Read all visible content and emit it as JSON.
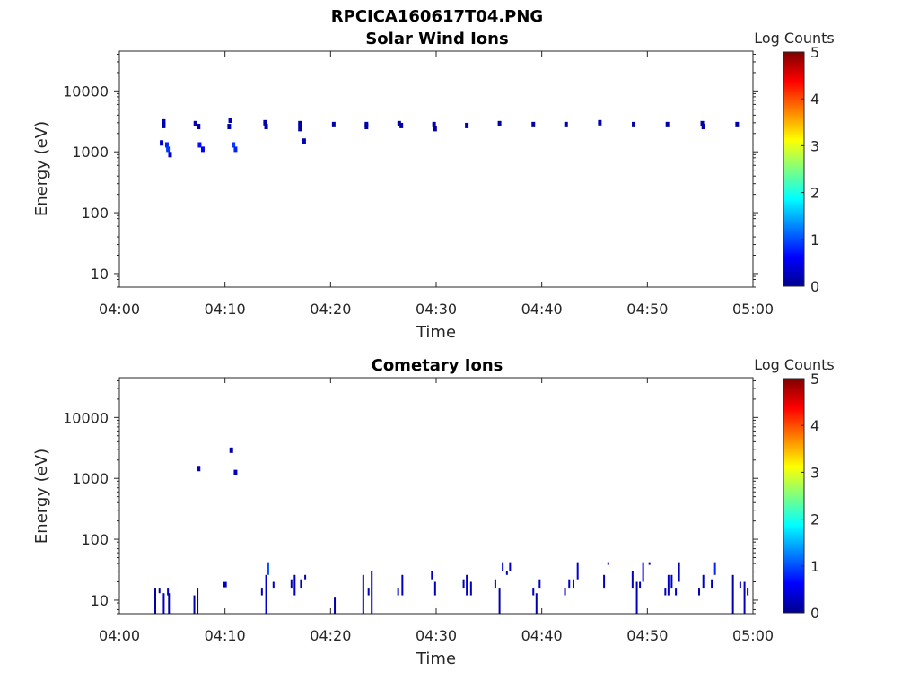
{
  "figure_title": "RPCICA160617T04.PNG",
  "chart_data": [
    {
      "type": "heatmap",
      "title": "Solar Wind Ions",
      "xlabel": "Time",
      "ylabel": "Energy (eV)",
      "y_scale": "log",
      "ylim": [
        6,
        45000
      ],
      "x_range": [
        "04:00",
        "05:00"
      ],
      "x_ticks": [
        "04:00",
        "04:10",
        "04:20",
        "04:30",
        "04:40",
        "04:50",
        "05:00"
      ],
      "y_ticks": [
        "10",
        "100",
        "1000",
        "10000"
      ],
      "y_tick_values": [
        10,
        100,
        1000,
        10000
      ],
      "colorbar": {
        "label": "Log Counts",
        "min": 0,
        "max": 5,
        "ticks": [
          "0",
          "1",
          "2",
          "3",
          "4",
          "5"
        ],
        "colormap": "jet"
      },
      "grid": false,
      "points": [
        {
          "t": 4.2,
          "e": 3100,
          "c": 0.3
        },
        {
          "t": 4.2,
          "e": 2700,
          "c": 0.2
        },
        {
          "t": 4.0,
          "e": 1400,
          "c": 0.4
        },
        {
          "t": 4.5,
          "e": 1300,
          "c": 0.8
        },
        {
          "t": 4.6,
          "e": 1100,
          "c": 0.9
        },
        {
          "t": 4.8,
          "e": 900,
          "c": 0.4
        },
        {
          "t": 7.2,
          "e": 2900,
          "c": 0.3
        },
        {
          "t": 7.5,
          "e": 2600,
          "c": 0.2
        },
        {
          "t": 7.6,
          "e": 1300,
          "c": 0.7
        },
        {
          "t": 7.9,
          "e": 1100,
          "c": 0.6
        },
        {
          "t": 10.5,
          "e": 3300,
          "c": 0.3
        },
        {
          "t": 10.4,
          "e": 2600,
          "c": 0.2
        },
        {
          "t": 10.8,
          "e": 1300,
          "c": 0.9
        },
        {
          "t": 11.0,
          "e": 1100,
          "c": 0.8
        },
        {
          "t": 13.8,
          "e": 3000,
          "c": 0.2
        },
        {
          "t": 13.9,
          "e": 2600,
          "c": 0.2
        },
        {
          "t": 17.1,
          "e": 2900,
          "c": 0.2
        },
        {
          "t": 17.1,
          "e": 2400,
          "c": 0.2
        },
        {
          "t": 17.5,
          "e": 1500,
          "c": 0.3
        },
        {
          "t": 20.3,
          "e": 2800,
          "c": 0.2
        },
        {
          "t": 23.4,
          "e": 2800,
          "c": 0.2
        },
        {
          "t": 23.4,
          "e": 2600,
          "c": 0.2
        },
        {
          "t": 26.5,
          "e": 2900,
          "c": 0.2
        },
        {
          "t": 26.7,
          "e": 2700,
          "c": 0.2
        },
        {
          "t": 29.8,
          "e": 2800,
          "c": 0.2
        },
        {
          "t": 29.9,
          "e": 2400,
          "c": 0.2
        },
        {
          "t": 32.9,
          "e": 2700,
          "c": 0.2
        },
        {
          "t": 36.0,
          "e": 2900,
          "c": 0.2
        },
        {
          "t": 39.2,
          "e": 2800,
          "c": 0.2
        },
        {
          "t": 42.3,
          "e": 2800,
          "c": 0.2
        },
        {
          "t": 45.5,
          "e": 3000,
          "c": 0.2
        },
        {
          "t": 48.7,
          "e": 2800,
          "c": 0.2
        },
        {
          "t": 51.9,
          "e": 2800,
          "c": 0.2
        },
        {
          "t": 55.2,
          "e": 2900,
          "c": 0.2
        },
        {
          "t": 55.3,
          "e": 2600,
          "c": 0.2
        },
        {
          "t": 58.5,
          "e": 2800,
          "c": 0.2
        }
      ]
    },
    {
      "type": "heatmap",
      "title": "Cometary Ions",
      "xlabel": "Time",
      "ylabel": "Energy (eV)",
      "y_scale": "log",
      "ylim": [
        6,
        45000
      ],
      "x_range": [
        "04:00",
        "05:00"
      ],
      "x_ticks": [
        "04:00",
        "04:10",
        "04:20",
        "04:30",
        "04:40",
        "04:50",
        "05:00"
      ],
      "y_ticks": [
        "10",
        "100",
        "1000",
        "10000"
      ],
      "y_tick_values": [
        10,
        100,
        1000,
        10000
      ],
      "colorbar": {
        "label": "Log Counts",
        "min": 0,
        "max": 5,
        "ticks": [
          "0",
          "1",
          "2",
          "3",
          "4",
          "5"
        ],
        "colormap": "jet"
      },
      "grid": false,
      "points": [
        {
          "t": 7.5,
          "e": 1450,
          "c": 0.3
        },
        {
          "t": 10.6,
          "e": 2900,
          "c": 0.2
        },
        {
          "t": 11.0,
          "e": 1250,
          "c": 0.3
        },
        {
          "t": 10.0,
          "e": 18,
          "c": 0.3
        }
      ],
      "bars": [
        {
          "t": 3.4,
          "e1": 6,
          "e2": 16,
          "c": 0.2
        },
        {
          "t": 3.8,
          "e1": 13,
          "e2": 16,
          "c": 0.2
        },
        {
          "t": 4.2,
          "e1": 6,
          "e2": 13,
          "c": 0.3
        },
        {
          "t": 4.6,
          "e1": 12,
          "e2": 16,
          "c": 0.3
        },
        {
          "t": 4.7,
          "e1": 6,
          "e2": 13,
          "c": 0.2
        },
        {
          "t": 7.1,
          "e1": 6,
          "e2": 12,
          "c": 0.2
        },
        {
          "t": 7.4,
          "e1": 6,
          "e2": 16,
          "c": 0.2
        },
        {
          "t": 13.5,
          "e1": 12,
          "e2": 16,
          "c": 0.3
        },
        {
          "t": 13.9,
          "e1": 6,
          "e2": 26,
          "c": 0.4
        },
        {
          "t": 14.1,
          "e1": 26,
          "e2": 42,
          "c": 1.0
        },
        {
          "t": 14.6,
          "e1": 16,
          "e2": 20,
          "c": 0.3
        },
        {
          "t": 16.3,
          "e1": 16,
          "e2": 22,
          "c": 0.3
        },
        {
          "t": 16.6,
          "e1": 12,
          "e2": 26,
          "c": 0.3
        },
        {
          "t": 17.2,
          "e1": 16,
          "e2": 22,
          "c": 0.3
        },
        {
          "t": 17.6,
          "e1": 22,
          "e2": 26,
          "c": 0.3
        },
        {
          "t": 20.4,
          "e1": 6,
          "e2": 11,
          "c": 0.2
        },
        {
          "t": 23.1,
          "e1": 6,
          "e2": 26,
          "c": 0.2
        },
        {
          "t": 23.6,
          "e1": 12,
          "e2": 16,
          "c": 0.3
        },
        {
          "t": 23.9,
          "e1": 6,
          "e2": 30,
          "c": 0.3
        },
        {
          "t": 26.4,
          "e1": 12,
          "e2": 16,
          "c": 0.3
        },
        {
          "t": 26.8,
          "e1": 12,
          "e2": 26,
          "c": 0.3
        },
        {
          "t": 29.6,
          "e1": 22,
          "e2": 30,
          "c": 0.3
        },
        {
          "t": 29.9,
          "e1": 12,
          "e2": 20,
          "c": 0.3
        },
        {
          "t": 32.6,
          "e1": 16,
          "e2": 22,
          "c": 0.3
        },
        {
          "t": 32.9,
          "e1": 12,
          "e2": 26,
          "c": 0.3
        },
        {
          "t": 33.3,
          "e1": 12,
          "e2": 20,
          "c": 0.3
        },
        {
          "t": 35.6,
          "e1": 16,
          "e2": 22,
          "c": 0.3
        },
        {
          "t": 36.0,
          "e1": 6,
          "e2": 16,
          "c": 0.2
        },
        {
          "t": 36.3,
          "e1": 30,
          "e2": 42,
          "c": 0.5
        },
        {
          "t": 36.7,
          "e1": 26,
          "e2": 30,
          "c": 0.3
        },
        {
          "t": 37.0,
          "e1": 30,
          "e2": 42,
          "c": 0.3
        },
        {
          "t": 39.2,
          "e1": 12,
          "e2": 16,
          "c": 0.3
        },
        {
          "t": 39.5,
          "e1": 6,
          "e2": 13,
          "c": 0.2
        },
        {
          "t": 39.8,
          "e1": 16,
          "e2": 22,
          "c": 0.3
        },
        {
          "t": 42.2,
          "e1": 12,
          "e2": 16,
          "c": 0.3
        },
        {
          "t": 42.6,
          "e1": 16,
          "e2": 22,
          "c": 0.3
        },
        {
          "t": 43.0,
          "e1": 16,
          "e2": 22,
          "c": 0.3
        },
        {
          "t": 43.4,
          "e1": 22,
          "e2": 42,
          "c": 0.4
        },
        {
          "t": 46.3,
          "e1": 38,
          "e2": 42,
          "c": 0.3
        },
        {
          "t": 45.9,
          "e1": 16,
          "e2": 26,
          "c": 0.3
        },
        {
          "t": 48.6,
          "e1": 16,
          "e2": 30,
          "c": 0.3
        },
        {
          "t": 49.0,
          "e1": 6,
          "e2": 20,
          "c": 0.3
        },
        {
          "t": 49.3,
          "e1": 16,
          "e2": 20,
          "c": 0.3
        },
        {
          "t": 49.6,
          "e1": 20,
          "e2": 42,
          "c": 0.6
        },
        {
          "t": 50.2,
          "e1": 38,
          "e2": 42,
          "c": 0.3
        },
        {
          "t": 51.7,
          "e1": 12,
          "e2": 16,
          "c": 0.3
        },
        {
          "t": 52.0,
          "e1": 12,
          "e2": 26,
          "c": 0.3
        },
        {
          "t": 52.3,
          "e1": 16,
          "e2": 26,
          "c": 0.3
        },
        {
          "t": 52.7,
          "e1": 12,
          "e2": 16,
          "c": 0.3
        },
        {
          "t": 53.0,
          "e1": 20,
          "e2": 42,
          "c": 0.3
        },
        {
          "t": 54.9,
          "e1": 12,
          "e2": 16,
          "c": 0.3
        },
        {
          "t": 55.3,
          "e1": 16,
          "e2": 26,
          "c": 0.3
        },
        {
          "t": 56.1,
          "e1": 16,
          "e2": 22,
          "c": 0.3
        },
        {
          "t": 56.4,
          "e1": 26,
          "e2": 42,
          "c": 0.8
        },
        {
          "t": 58.1,
          "e1": 6,
          "e2": 26,
          "c": 0.2
        },
        {
          "t": 58.8,
          "e1": 16,
          "e2": 20,
          "c": 0.3
        },
        {
          "t": 59.2,
          "e1": 6,
          "e2": 20,
          "c": 0.3
        },
        {
          "t": 59.5,
          "e1": 12,
          "e2": 16,
          "c": 0.3
        }
      ]
    }
  ]
}
